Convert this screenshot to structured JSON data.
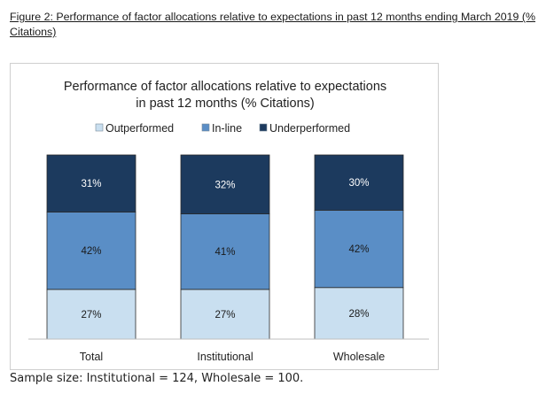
{
  "figure_caption": "Figure 2: Performance of factor allocations relative to expectations in past 12 months ending March 2019  (% Citations)",
  "sample_note": "Sample size: Institutional = 124, Wholesale = 100.",
  "chart_data": {
    "type": "bar",
    "stacked": true,
    "title_lines": [
      "Performance of factor allocations relative to expectations",
      "in past 12 months (% Citations)"
    ],
    "categories": [
      "Total",
      "Institutional",
      "Wholesale"
    ],
    "series": [
      {
        "name": "Outperformed",
        "values": [
          27,
          27,
          28
        ],
        "labels": [
          "27%",
          "27%",
          "28%"
        ],
        "color": "#c9dff0",
        "label_color": "#1a1a1a"
      },
      {
        "name": "In-line",
        "values": [
          42,
          41,
          42
        ],
        "labels": [
          "42%",
          "41%",
          "42%"
        ],
        "color": "#5a8ec6",
        "label_color": "#1a1a1a"
      },
      {
        "name": "Underperformed",
        "values": [
          31,
          32,
          30
        ],
        "labels": [
          "31%",
          "32%",
          "30%"
        ],
        "color": "#1c3a5e",
        "label_color": "#ffffff"
      }
    ],
    "ylim": [
      0,
      100
    ],
    "legend_position": "top",
    "grid": false
  }
}
